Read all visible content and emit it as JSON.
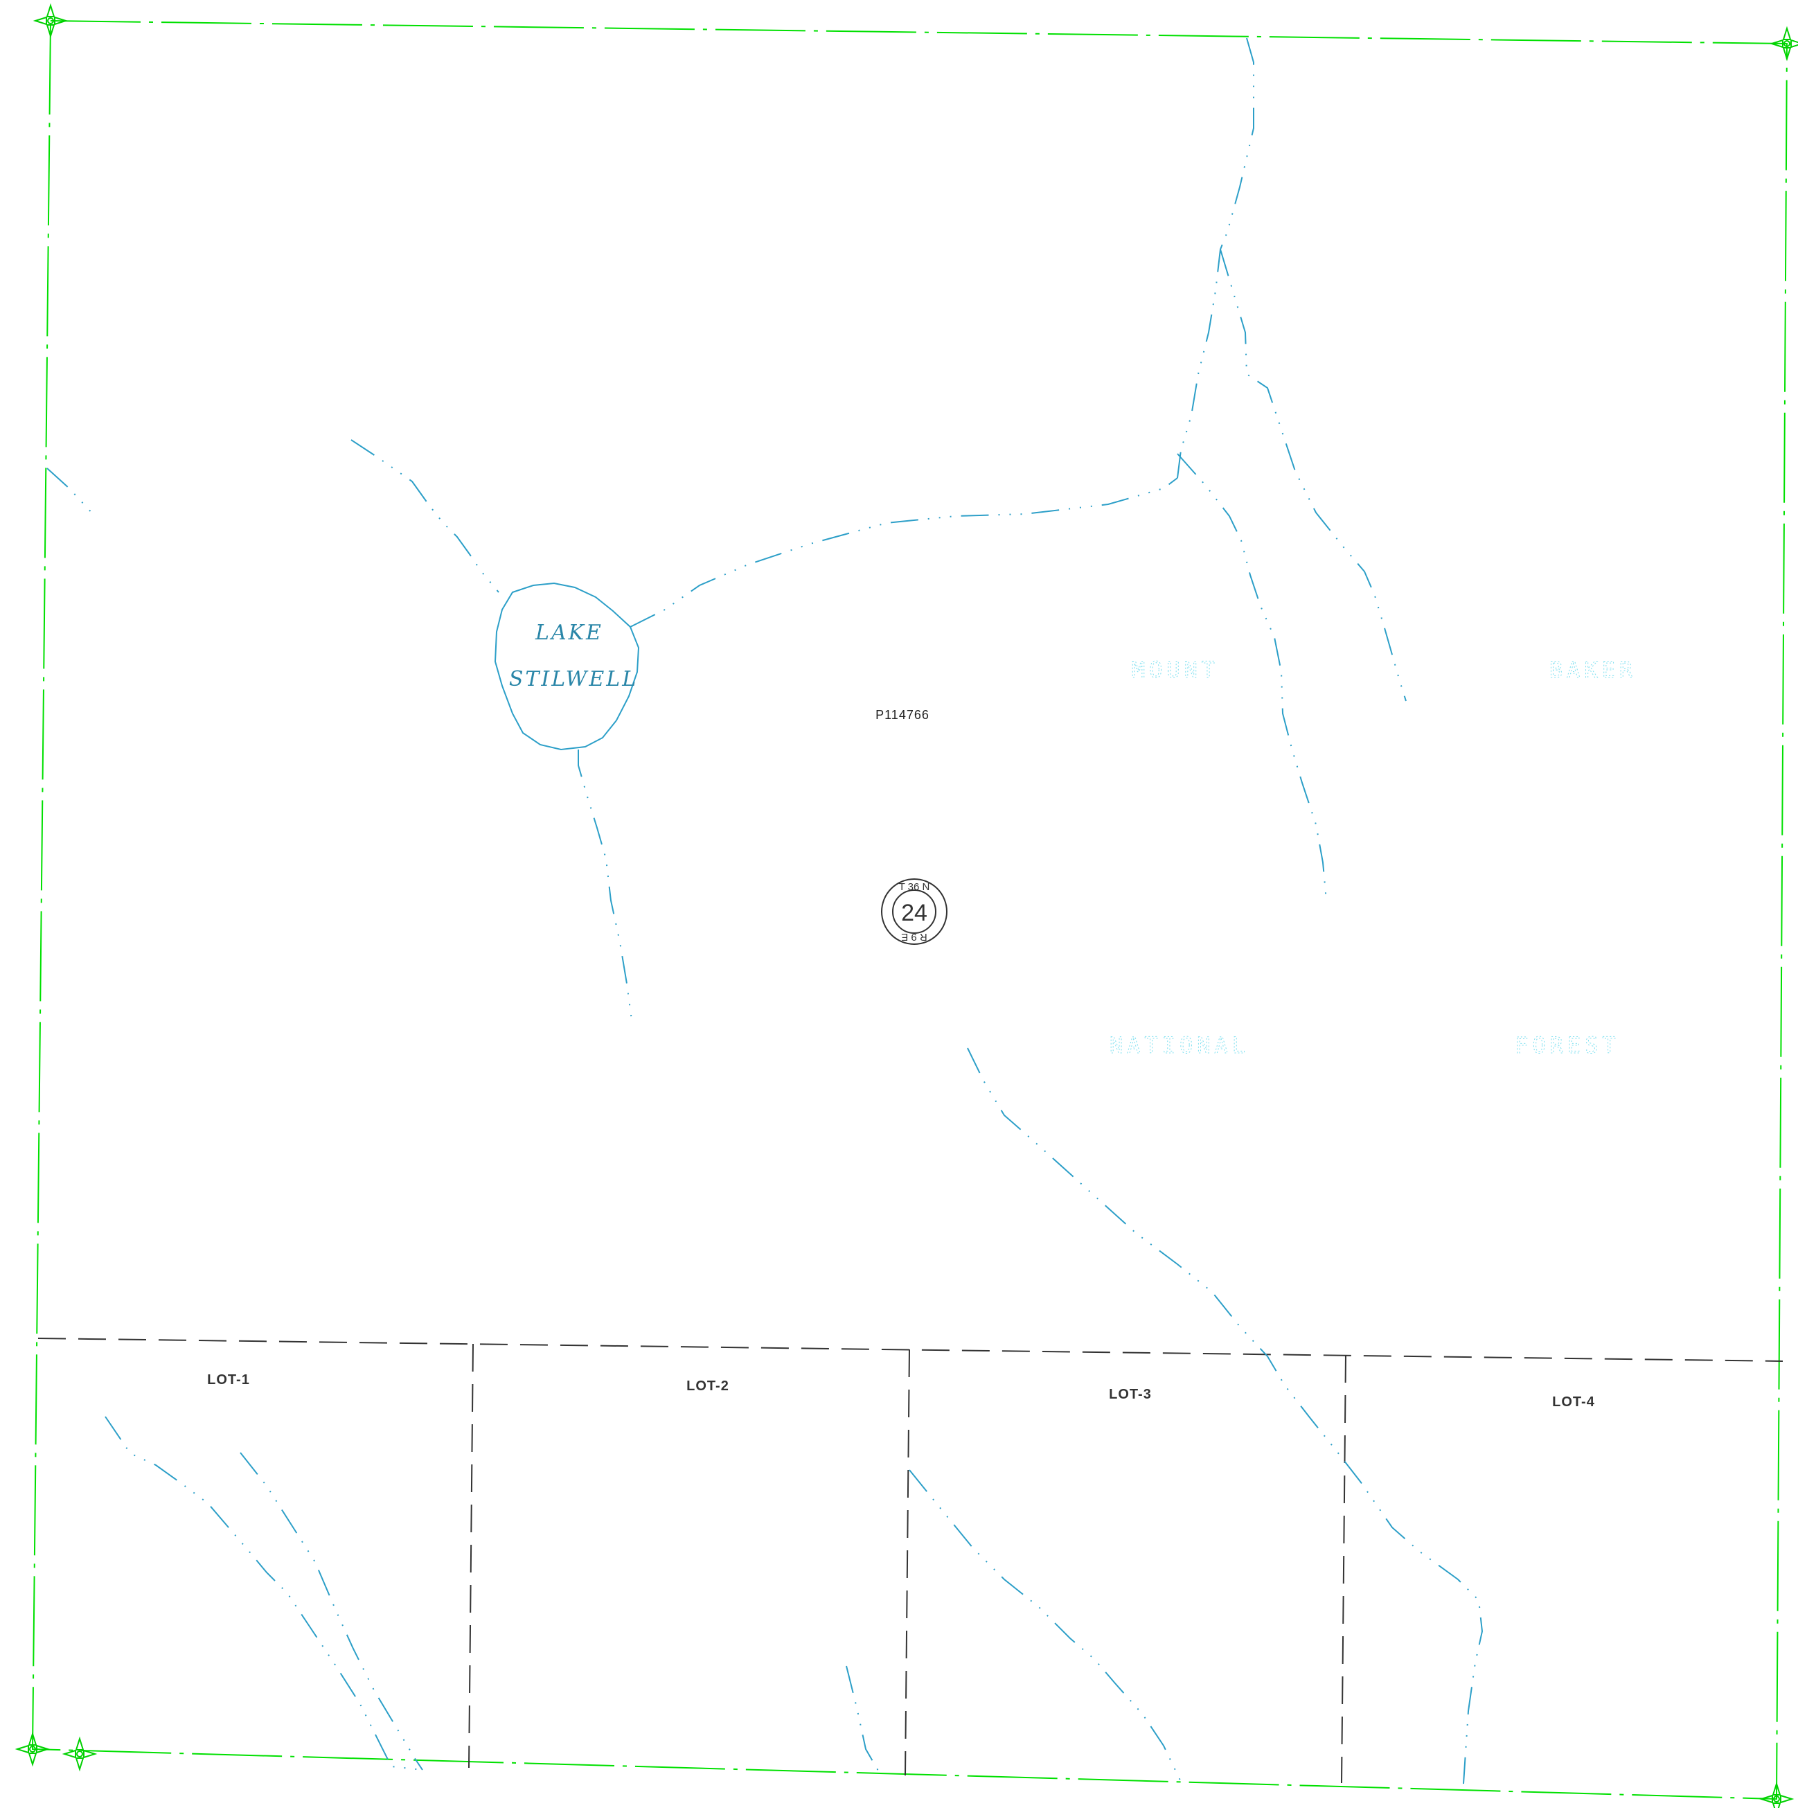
{
  "lake": {
    "name_line1": "LAKE",
    "name_line2": "STILWELL"
  },
  "parcel": {
    "id": "P114766"
  },
  "forest": {
    "word1": "MOUNT",
    "word2": "BAKER",
    "word3": "NATIONAL",
    "word4": "FOREST"
  },
  "section": {
    "number": "24",
    "township": "T 36 N",
    "range": "R 9 E"
  },
  "lots": [
    {
      "label": "LOT-1"
    },
    {
      "label": "LOT-2"
    },
    {
      "label": "LOT-3"
    },
    {
      "label": "LOT-4"
    }
  ],
  "colors": {
    "boundary": "#00e000",
    "water": "#2c9fc8",
    "lot_lines": "#333333",
    "forest_text": "#7fe0f0"
  }
}
